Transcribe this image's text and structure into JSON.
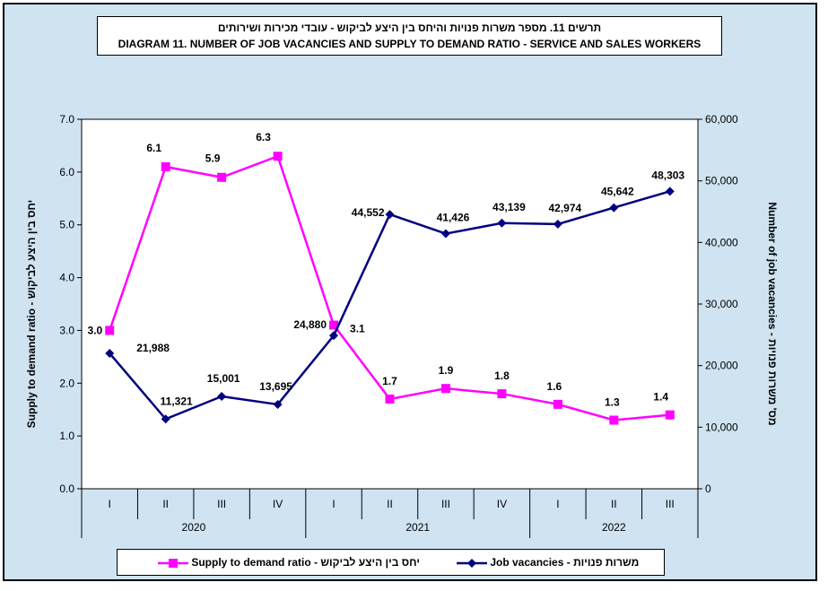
{
  "title": {
    "line1": "תרשים 11. מספר משרות פנויות והיחס בין היצע לביקוש - עובדי מכירות ושירותים",
    "line2": "DIAGRAM 11. NUMBER OF JOB VACANCIES  AND SUPPLY TO DEMAND RATIO -  SERVICE AND SALES WORKERS"
  },
  "chart_data": {
    "type": "line",
    "categories": [
      "I",
      "II",
      "III",
      "IV",
      "I",
      "II",
      "III",
      "IV",
      "I",
      "II",
      "III"
    ],
    "years": [
      {
        "label": "2020",
        "count": 4
      },
      {
        "label": "2021",
        "count": 4
      },
      {
        "label": "2022",
        "count": 3
      }
    ],
    "series": [
      {
        "name": "Supply to demand ratio - יחס בין היצע לביקוש",
        "axis": "left",
        "color": "#ff00ff",
        "marker": "square",
        "values": [
          3.0,
          6.1,
          5.9,
          6.3,
          3.1,
          1.7,
          1.9,
          1.8,
          1.6,
          1.3,
          1.4
        ],
        "labels": [
          "3.0",
          "6.1",
          "5.9",
          "6.3",
          "3.1",
          "1.7",
          "1.9",
          "1.8",
          "1.6",
          "1.3",
          "1.4"
        ]
      },
      {
        "name": "Job vacancies - משרות פנויות",
        "axis": "right",
        "color": "#000080",
        "marker": "diamond",
        "values": [
          21988,
          11321,
          15001,
          13695,
          24880,
          44552,
          41426,
          43139,
          42974,
          45642,
          48303
        ],
        "labels": [
          "21,988",
          "11,321",
          "15,001",
          "13,695",
          "24,880",
          "44,552",
          "41,426",
          "43,139",
          "42,974",
          "45,642",
          "48,303"
        ]
      }
    ],
    "left_axis": {
      "title": "Supply to demand ratio - יחס בין היצע לביקוש",
      "ylim": [
        0,
        7
      ],
      "ticks": [
        "0.0",
        "1.0",
        "2.0",
        "3.0",
        "4.0",
        "5.0",
        "6.0",
        "7.0"
      ]
    },
    "right_axis": {
      "title": "Number of job vacancies - מס' משרות פנויות",
      "ylim": [
        0,
        60000
      ],
      "ticks": [
        "0",
        "10,000",
        "20,000",
        "30,000",
        "40,000",
        "50,000",
        "60,000"
      ]
    },
    "grid": false,
    "legend_position": "bottom"
  },
  "legend": {
    "ratio_label": "Supply to demand ratio - יחס בין היצע לביקוש",
    "vacancies_label": "Job vacancies - משרות פנויות"
  },
  "colors": {
    "background": "#cfe3f1",
    "ratio": "#ff00ff",
    "vacancies": "#000080"
  }
}
